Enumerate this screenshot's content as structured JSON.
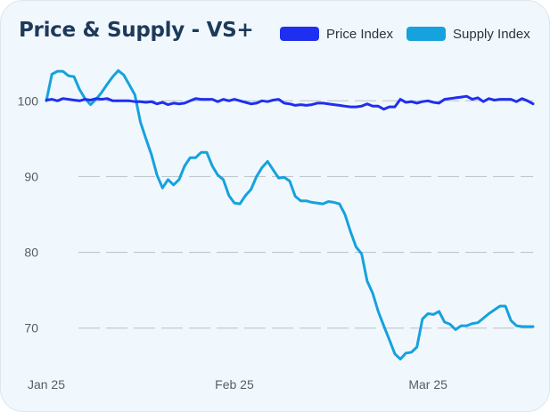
{
  "chart_data": {
    "type": "line",
    "title": "Price & Supply - VS+",
    "colors": {
      "price": "#1f2ff0",
      "supply": "#15a2dd"
    },
    "y_ticks": [
      70,
      80,
      90,
      100
    ],
    "ylim": [
      65.5,
      104.5
    ],
    "x_ticks": [
      "Jan 25",
      "Feb 25",
      "Mar 25"
    ],
    "x_tick_index": [
      0,
      34,
      69
    ],
    "grid": "horizontal dashed",
    "legend": "top-right",
    "series": [
      {
        "name": "Price Index",
        "values": [
          100.1,
          100.2,
          100.0,
          100.3,
          100.2,
          100.1,
          100.0,
          100.2,
          100.1,
          100.3,
          100.2,
          100.3,
          100.0,
          100.0,
          100.0,
          100.0,
          99.9,
          99.9,
          99.8,
          99.9,
          99.6,
          99.8,
          99.5,
          99.7,
          99.6,
          99.7,
          100.0,
          100.3,
          100.2,
          100.2,
          100.2,
          99.9,
          100.2,
          100.0,
          100.2,
          100.0,
          99.8,
          99.6,
          99.7,
          100.0,
          99.9,
          100.1,
          100.2,
          99.7,
          99.6,
          99.4,
          99.5,
          99.4,
          99.5,
          99.7,
          99.7,
          99.6,
          99.5,
          99.4,
          99.3,
          99.2,
          99.2,
          99.3,
          99.6,
          99.3,
          99.3,
          98.9,
          99.2,
          99.2,
          100.2,
          99.8,
          99.9,
          99.7,
          99.9,
          100.0,
          99.8,
          99.7,
          100.2,
          100.3,
          100.4,
          100.5,
          100.6,
          100.2,
          100.4,
          99.9,
          100.3,
          100.1,
          100.2,
          100.2,
          100.2,
          99.9,
          100.3,
          100.0,
          99.6
        ]
      },
      {
        "name": "Supply Index",
        "values": [
          100.0,
          103.5,
          103.9,
          103.9,
          103.3,
          103.2,
          101.5,
          100.3,
          99.5,
          100.2,
          101.1,
          102.2,
          103.2,
          104.0,
          103.4,
          102.1,
          100.8,
          97.2,
          95.0,
          92.9,
          90.2,
          88.5,
          89.6,
          88.9,
          89.6,
          91.4,
          92.5,
          92.5,
          93.2,
          93.2,
          91.4,
          90.2,
          89.6,
          87.5,
          86.5,
          86.4,
          87.5,
          88.3,
          90.0,
          91.2,
          92.0,
          90.9,
          89.8,
          89.9,
          89.4,
          87.4,
          86.8,
          86.8,
          86.6,
          86.5,
          86.4,
          86.7,
          86.6,
          86.4,
          85.0,
          82.7,
          80.7,
          79.8,
          76.2,
          74.6,
          72.2,
          70.3,
          68.5,
          66.6,
          65.9,
          66.7,
          66.8,
          67.5,
          71.2,
          71.9,
          71.8,
          72.2,
          70.8,
          70.5,
          69.8,
          70.3,
          70.3,
          70.6,
          70.7,
          71.3,
          71.9,
          72.4,
          72.9,
          72.9,
          71.0,
          70.3,
          70.2,
          70.2,
          70.2
        ]
      }
    ]
  }
}
